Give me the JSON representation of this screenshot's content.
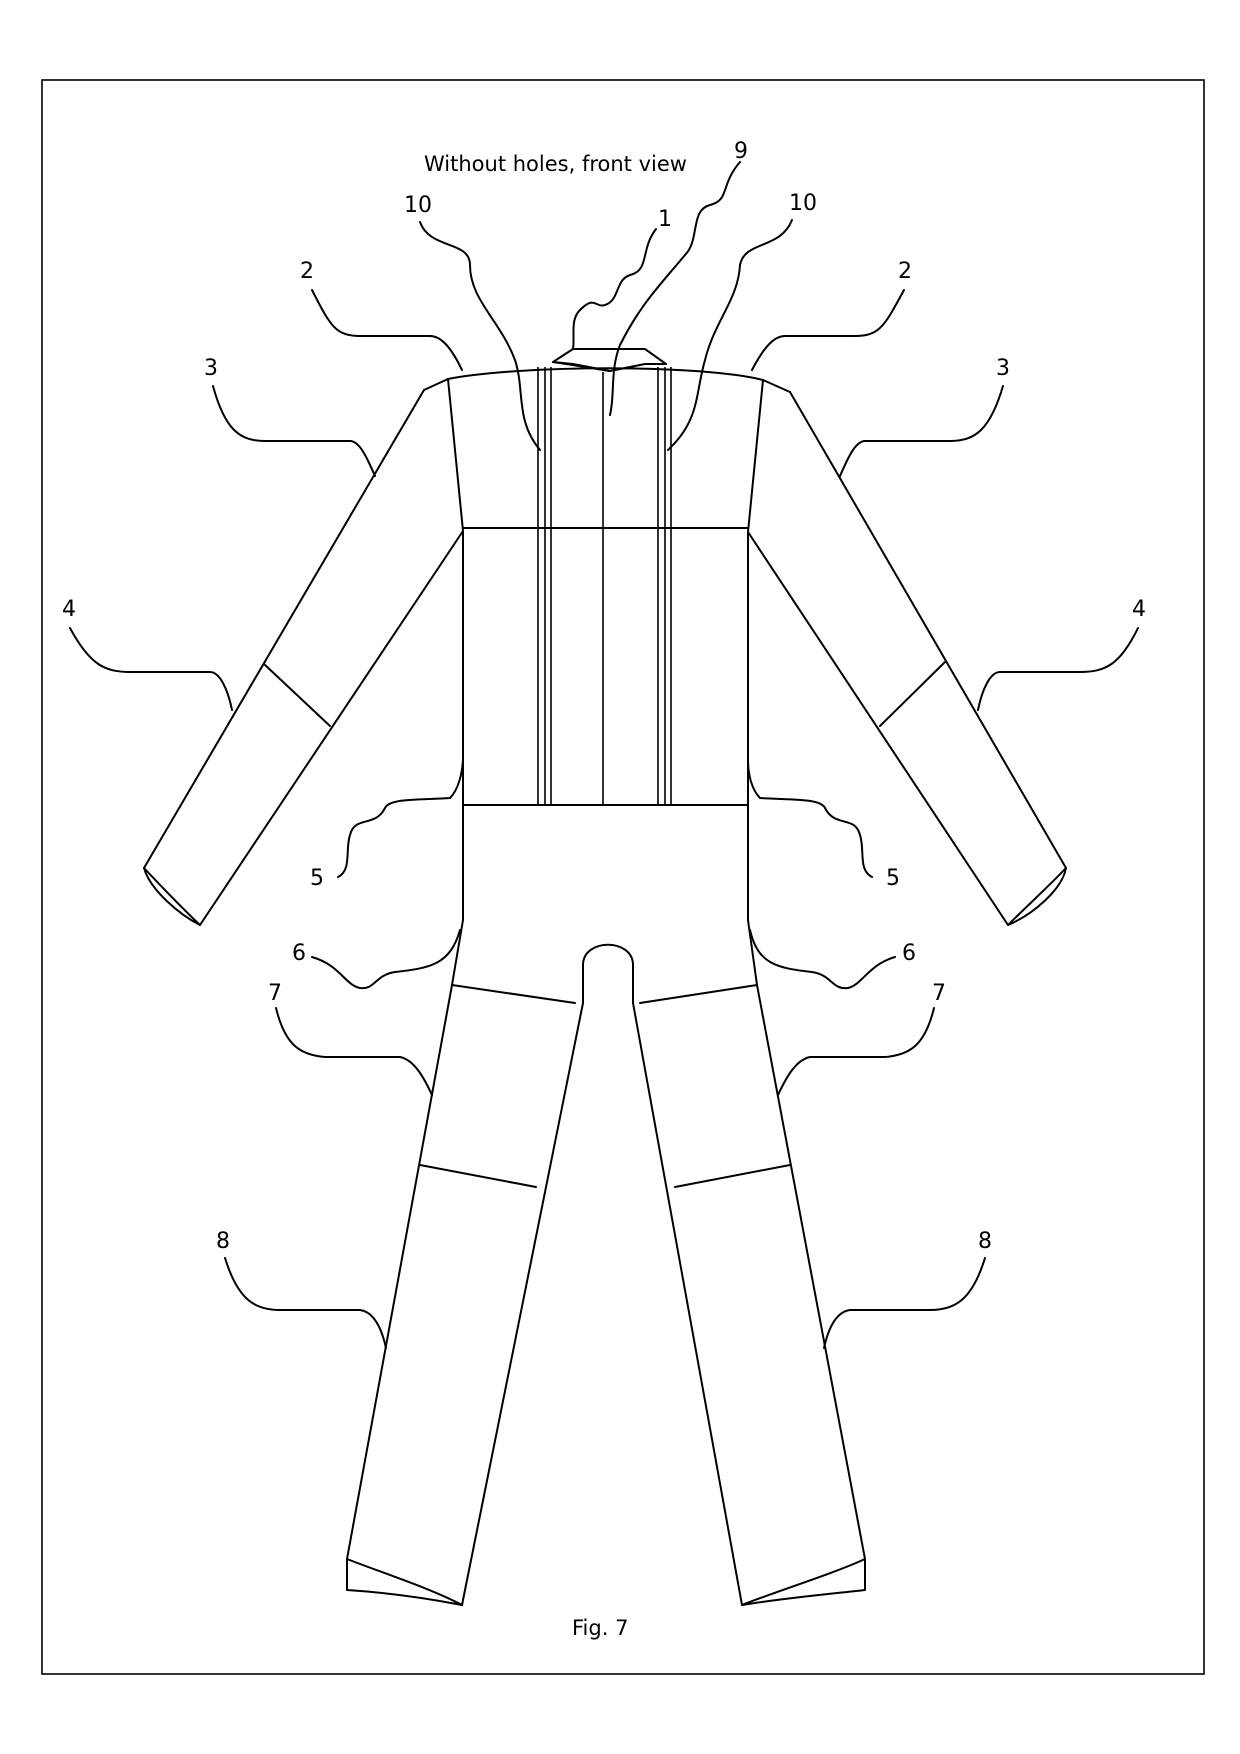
{
  "figure": {
    "title": "Without holes, front view",
    "caption": "Fig. 7"
  },
  "labels": {
    "l1": "1",
    "l2_left": "2",
    "l2_right": "2",
    "l3_left": "3",
    "l3_right": "3",
    "l4_left": "4",
    "l4_right": "4",
    "l5_left": "5",
    "l5_right": "5",
    "l6_left": "6",
    "l6_right": "6",
    "l7_left": "7",
    "l7_right": "7",
    "l8_left": "8",
    "l8_right": "8",
    "l9": "9",
    "l10_left": "10",
    "l10_right": "10"
  },
  "colors": {
    "ink": "#000000",
    "paper": "#ffffff"
  }
}
